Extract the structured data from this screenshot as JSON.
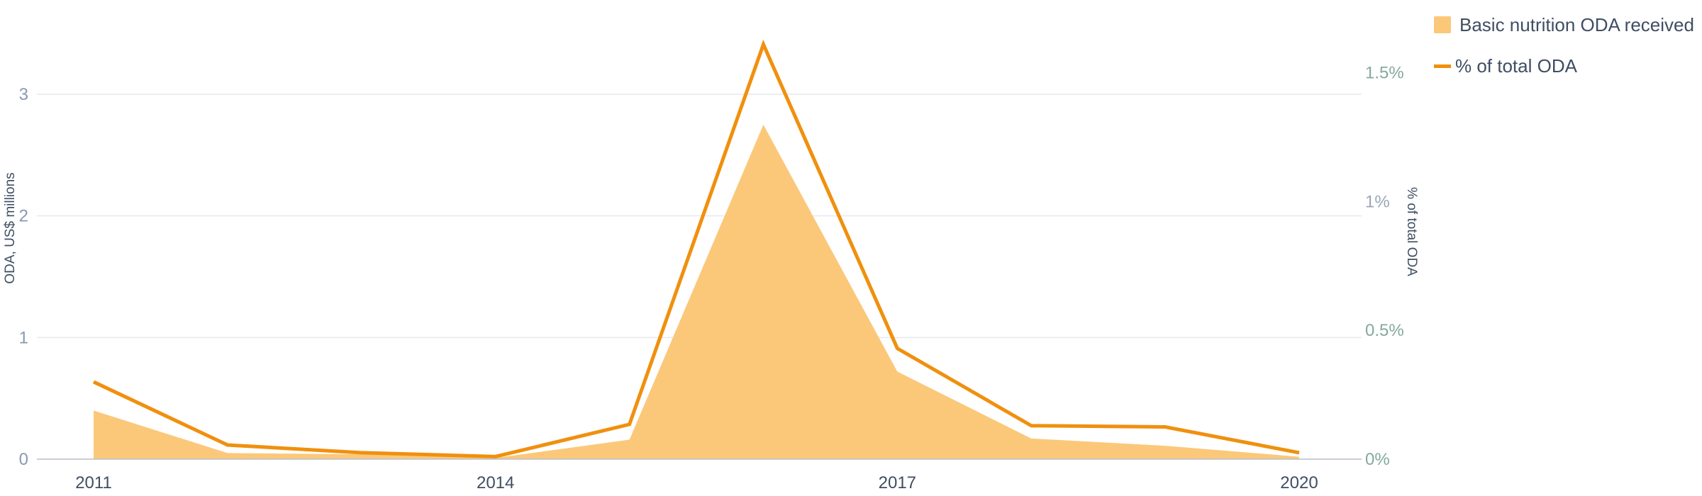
{
  "chart_data": {
    "type": "area",
    "x": [
      2011,
      2012,
      2013,
      2014,
      2015,
      2016,
      2017,
      2018,
      2019,
      2020
    ],
    "x_ticks": [
      2011,
      2014,
      2017,
      2020
    ],
    "series": [
      {
        "name": "Basic nutrition ODA received",
        "type": "area",
        "axis": "left",
        "color": "#fbc87a",
        "values": [
          0.4,
          0.05,
          0.04,
          0.01,
          0.16,
          2.75,
          0.72,
          0.17,
          0.11,
          0.02
        ]
      },
      {
        "name": "% of total ODA",
        "type": "line",
        "axis": "right",
        "color": "#f0900e",
        "values": [
          0.3,
          0.055,
          0.025,
          0.01,
          0.135,
          1.61,
          0.43,
          0.13,
          0.125,
          0.025
        ]
      }
    ],
    "y_left": {
      "label": "ODA, US$ millions",
      "range": [
        0,
        3.6
      ],
      "ticks": [
        0,
        1,
        2,
        3
      ],
      "tick_labels": [
        "0",
        "1",
        "2",
        "3"
      ]
    },
    "y_right": {
      "label": "% of total ODA",
      "range": [
        0,
        1.7
      ],
      "ticks": [
        0,
        0.5,
        1,
        1.5
      ],
      "tick_labels": [
        "0%",
        "0.5%",
        "1%",
        "1.5%"
      ]
    },
    "grid": true,
    "legend_position": "top-right"
  }
}
